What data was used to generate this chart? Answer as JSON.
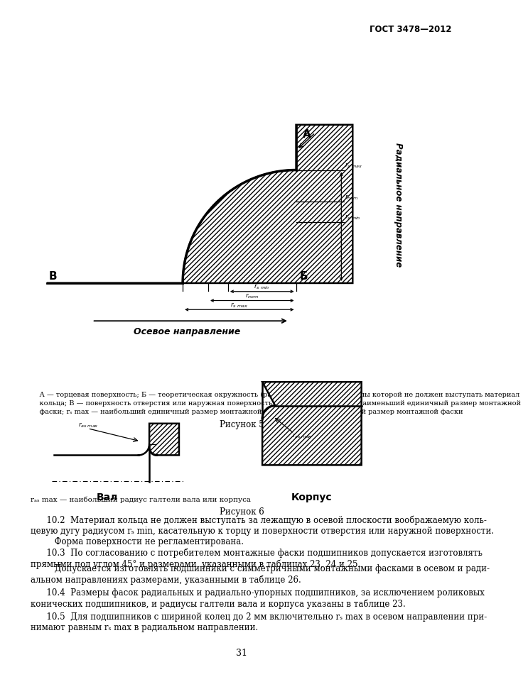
{
  "header": "ГОСТ 3478—2012",
  "page_num": "31",
  "fig5_label": "Рисунок 5",
  "fig6_label": "Рисунок 6",
  "fig6_val": "Вал",
  "fig6_korp": "Корпус",
  "fig5_cap1": "    А — торцевая поверхность; Б — теоретическая окружность (радиусом rₛ min), за пределы которой не должен выступать материал",
  "fig5_cap2": "    кольца; В — поверхность отверстия или наружная поверхность подшипника; rₛ min — наименьший единичный размер монтажной",
  "fig5_cap3": "    фаски; rₛ max — наибольший единичный размер монтажной фаски; rⁿₒₘ — номинальный размер монтажной фаски",
  "fig6_cap": "rₐₛ max — наибольший радиус галтели вала или корпуса",
  "text_102": "      10.2  Материал кольца не должен выступать за лежащую в осевой плоскости воображаемую коль-\nцевую дугу радиусом rₛ min, касательную к торцу и поверхности отверстия или наружной поверхности.\n         Форма поверхности не регламентирована.",
  "text_103a": "      10.3  По согласованию с потребителем монтажные фаски подшипников допускается изготовлять\nпрямыми под углом 45° и размерами, указанными в таблицах 23, 24 и 25.",
  "text_103b": "         Допускается изготовлять подшипники с симметричными монтажными фасками в осевом и ради-\nальном направлениях размерами, указанными в таблице 26.",
  "text_104": "      10.4  Размеры фасок радиальных и радиально-упорных подшипников, за исключением роликовых\nконических подшипников, и радиусы галтели вала и корпуса указаны в таблице 23.",
  "text_105": "      10.5  Для подшипников с шириной колец до 2 мм включительно rₛ max в осевом направлении при-\nнимают равным rₛ max в радиальном направлении.",
  "bg": "#ffffff",
  "lc": "#000000"
}
